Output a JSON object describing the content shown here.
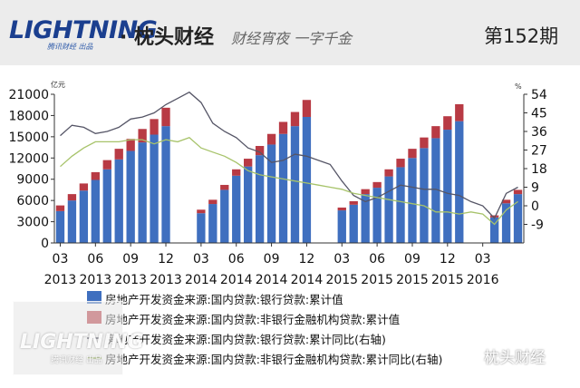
{
  "header": {
    "brand": "LIGHTNING",
    "brand_sub": "腾讯财经 出品",
    "title": "· 枕头财经",
    "slogan": "财经宵夜 一字千金",
    "issue": "第152期"
  },
  "watermark": {
    "brand": "LIGHTNING",
    "sub": "腾讯财经 出品",
    "wechat": "枕头财经"
  },
  "colors": {
    "bar_bottom": "#3f6fbf",
    "bar_top": "#b83a44",
    "line1": "#555566",
    "line2": "#a7c36a",
    "header_bg": "#ececec",
    "brand_blue": "#1b3f8f"
  },
  "chart_data": {
    "type": "bar",
    "stacked": true,
    "y_unit_label": "亿元",
    "y2_unit_label": "%",
    "ylim": [
      0,
      21000
    ],
    "yticks": [
      "21000",
      "18000",
      "15000",
      "12000",
      "9000",
      "6000",
      "3000",
      "0"
    ],
    "y2lim": [
      -18,
      54
    ],
    "y2ticks": [
      "54",
      "45",
      "36",
      "27",
      "18",
      "9",
      "0",
      "-9"
    ],
    "x_tick_labels": [
      {
        "index": 0,
        "month": "03",
        "year": "2013"
      },
      {
        "index": 3,
        "month": "06",
        "year": "2013"
      },
      {
        "index": 6,
        "month": "09",
        "year": "2013"
      },
      {
        "index": 9,
        "month": "12",
        "year": "2013"
      },
      {
        "index": 12,
        "month": "03",
        "year": "2014"
      },
      {
        "index": 15,
        "month": "06",
        "year": "2014"
      },
      {
        "index": 18,
        "month": "09",
        "year": "2014"
      },
      {
        "index": 21,
        "month": "12",
        "year": "2014"
      },
      {
        "index": 24,
        "month": "03",
        "year": "2015"
      },
      {
        "index": 27,
        "month": "06",
        "year": "2015"
      },
      {
        "index": 30,
        "month": "09",
        "year": "2015"
      },
      {
        "index": 33,
        "month": "12",
        "year": "2015"
      },
      {
        "index": 36,
        "month": "03",
        "year": "2016"
      }
    ],
    "series": [
      {
        "name": "房地产开发资金来源:国内贷款:银行贷款:累计值",
        "kind": "bar",
        "values": [
          4500,
          6000,
          7400,
          8900,
          10400,
          11800,
          13000,
          14200,
          15300,
          16500,
          null,
          null,
          4200,
          5500,
          7500,
          9500,
          10800,
          12400,
          13900,
          15400,
          16500,
          17800,
          null,
          null,
          4600,
          5400,
          6900,
          7800,
          9400,
          10700,
          12000,
          13400,
          14800,
          16000,
          17200,
          null,
          null,
          3600,
          5600,
          6900
        ]
      },
      {
        "name": "房地产开发资金来源:国内贷款:非银行金融机构贷款:累计值",
        "kind": "bar",
        "values": [
          800,
          900,
          1000,
          1100,
          1300,
          1500,
          1700,
          1900,
          2200,
          2600,
          null,
          null,
          500,
          600,
          700,
          900,
          1100,
          1300,
          1500,
          1700,
          2000,
          2400,
          null,
          null,
          400,
          500,
          700,
          800,
          1000,
          1200,
          1300,
          1500,
          1700,
          1900,
          2400,
          null,
          null,
          300,
          500,
          600
        ]
      },
      {
        "name": "房地产开发资金来源:国内贷款:银行贷款:累计同比(右轴)",
        "kind": "line",
        "axis": "right",
        "values": [
          34,
          39,
          38,
          35,
          36,
          38,
          42,
          43,
          45,
          49,
          52,
          55,
          50,
          40,
          36,
          33,
          28,
          26,
          21,
          22,
          25,
          24,
          22,
          20,
          12,
          5,
          2,
          4,
          7,
          10,
          9,
          8,
          8,
          6,
          5,
          2,
          0,
          -6,
          6,
          9
        ]
      },
      {
        "name": "房地产开发资金来源:国内贷款:非银行金融机构贷款:累计同比(右轴)",
        "kind": "line",
        "axis": "right",
        "values": [
          19,
          24,
          28,
          31,
          31,
          31,
          32,
          32,
          30,
          32,
          31,
          33,
          28,
          26,
          24,
          21,
          17,
          15,
          14,
          13,
          12,
          11,
          10,
          9,
          8,
          6,
          5,
          4,
          3,
          2,
          1,
          0,
          -3,
          -3,
          -4,
          -3,
          -4,
          -9,
          -2,
          2
        ]
      }
    ]
  }
}
